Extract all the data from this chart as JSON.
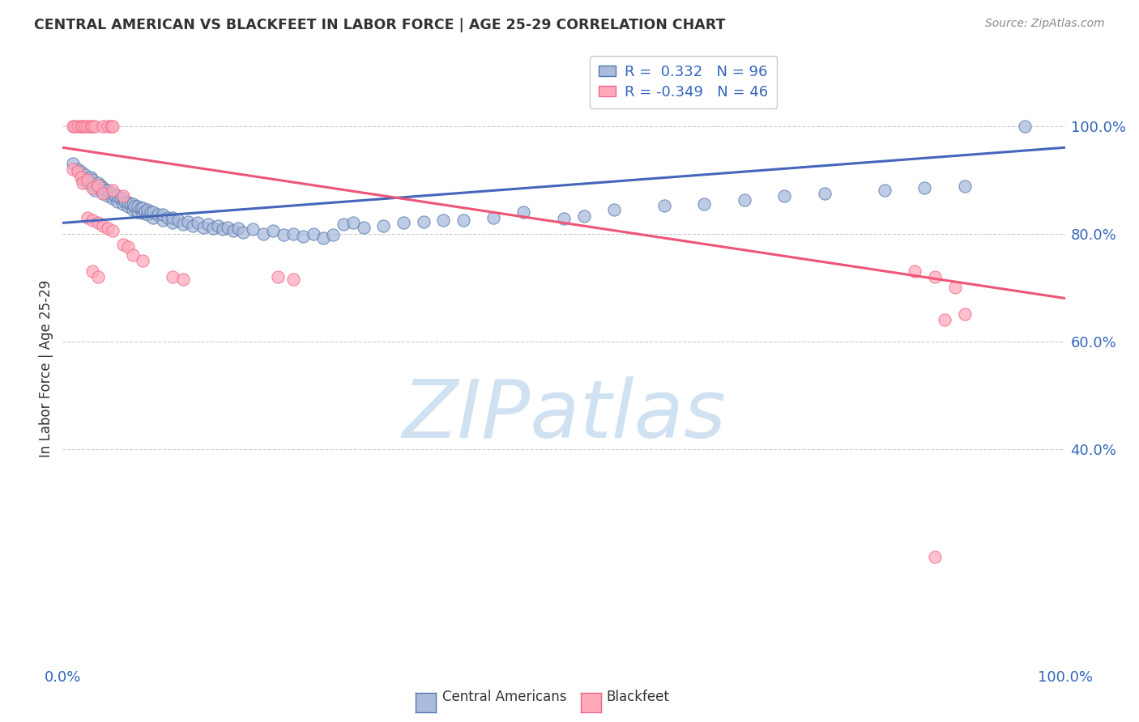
{
  "title": "CENTRAL AMERICAN VS BLACKFEET IN LABOR FORCE | AGE 25-29 CORRELATION CHART",
  "source": "Source: ZipAtlas.com",
  "ylabel": "In Labor Force | Age 25-29",
  "blue_color": "#AABBDD",
  "pink_color": "#FFAABB",
  "blue_edge_color": "#5577AA",
  "pink_edge_color": "#EE6688",
  "blue_line_color": "#4466BB",
  "pink_line_color": "#EE5577",
  "legend_blue_label": "R =  0.332   N = 96",
  "legend_pink_label": "R = -0.349   N = 46",
  "watermark_text": "ZIPatlas",
  "watermark_color": "#C8DDEF",
  "blue_points": [
    [
      0.01,
      0.93
    ],
    [
      0.015,
      0.92
    ],
    [
      0.018,
      0.915
    ],
    [
      0.02,
      0.9
    ],
    [
      0.022,
      0.91
    ],
    [
      0.025,
      0.895
    ],
    [
      0.028,
      0.905
    ],
    [
      0.03,
      0.89
    ],
    [
      0.03,
      0.9
    ],
    [
      0.032,
      0.88
    ],
    [
      0.035,
      0.895
    ],
    [
      0.035,
      0.885
    ],
    [
      0.038,
      0.89
    ],
    [
      0.04,
      0.875
    ],
    [
      0.04,
      0.885
    ],
    [
      0.042,
      0.88
    ],
    [
      0.045,
      0.87
    ],
    [
      0.045,
      0.88
    ],
    [
      0.048,
      0.875
    ],
    [
      0.05,
      0.865
    ],
    [
      0.05,
      0.875
    ],
    [
      0.052,
      0.87
    ],
    [
      0.055,
      0.86
    ],
    [
      0.055,
      0.87
    ],
    [
      0.058,
      0.865
    ],
    [
      0.06,
      0.855
    ],
    [
      0.06,
      0.865
    ],
    [
      0.062,
      0.86
    ],
    [
      0.065,
      0.85
    ],
    [
      0.065,
      0.858
    ],
    [
      0.068,
      0.855
    ],
    [
      0.07,
      0.845
    ],
    [
      0.07,
      0.855
    ],
    [
      0.072,
      0.85
    ],
    [
      0.075,
      0.84
    ],
    [
      0.075,
      0.85
    ],
    [
      0.078,
      0.848
    ],
    [
      0.08,
      0.838
    ],
    [
      0.08,
      0.848
    ],
    [
      0.082,
      0.842
    ],
    [
      0.085,
      0.835
    ],
    [
      0.085,
      0.845
    ],
    [
      0.088,
      0.84
    ],
    [
      0.09,
      0.83
    ],
    [
      0.09,
      0.84
    ],
    [
      0.095,
      0.835
    ],
    [
      0.1,
      0.825
    ],
    [
      0.1,
      0.835
    ],
    [
      0.105,
      0.83
    ],
    [
      0.11,
      0.82
    ],
    [
      0.11,
      0.83
    ],
    [
      0.115,
      0.825
    ],
    [
      0.12,
      0.818
    ],
    [
      0.125,
      0.822
    ],
    [
      0.13,
      0.815
    ],
    [
      0.135,
      0.82
    ],
    [
      0.14,
      0.812
    ],
    [
      0.145,
      0.818
    ],
    [
      0.15,
      0.81
    ],
    [
      0.155,
      0.815
    ],
    [
      0.16,
      0.808
    ],
    [
      0.165,
      0.812
    ],
    [
      0.17,
      0.805
    ],
    [
      0.175,
      0.81
    ],
    [
      0.18,
      0.802
    ],
    [
      0.19,
      0.808
    ],
    [
      0.2,
      0.8
    ],
    [
      0.21,
      0.805
    ],
    [
      0.22,
      0.798
    ],
    [
      0.23,
      0.8
    ],
    [
      0.24,
      0.795
    ],
    [
      0.25,
      0.8
    ],
    [
      0.26,
      0.792
    ],
    [
      0.27,
      0.798
    ],
    [
      0.28,
      0.818
    ],
    [
      0.29,
      0.82
    ],
    [
      0.3,
      0.812
    ],
    [
      0.32,
      0.815
    ],
    [
      0.34,
      0.82
    ],
    [
      0.36,
      0.822
    ],
    [
      0.38,
      0.825
    ],
    [
      0.4,
      0.825
    ],
    [
      0.43,
      0.83
    ],
    [
      0.46,
      0.84
    ],
    [
      0.5,
      0.828
    ],
    [
      0.52,
      0.832
    ],
    [
      0.55,
      0.845
    ],
    [
      0.6,
      0.852
    ],
    [
      0.64,
      0.855
    ],
    [
      0.68,
      0.862
    ],
    [
      0.72,
      0.87
    ],
    [
      0.76,
      0.875
    ],
    [
      0.82,
      0.88
    ],
    [
      0.86,
      0.885
    ],
    [
      0.9,
      0.888
    ],
    [
      0.96,
      1.0
    ]
  ],
  "pink_points": [
    [
      0.01,
      1.0
    ],
    [
      0.012,
      1.0
    ],
    [
      0.015,
      1.0
    ],
    [
      0.018,
      1.0
    ],
    [
      0.02,
      1.0
    ],
    [
      0.022,
      1.0
    ],
    [
      0.025,
      1.0
    ],
    [
      0.028,
      1.0
    ],
    [
      0.03,
      1.0
    ],
    [
      0.032,
      1.0
    ],
    [
      0.04,
      1.0
    ],
    [
      0.045,
      1.0
    ],
    [
      0.048,
      1.0
    ],
    [
      0.05,
      1.0
    ],
    [
      0.01,
      0.92
    ],
    [
      0.015,
      0.915
    ],
    [
      0.018,
      0.905
    ],
    [
      0.02,
      0.895
    ],
    [
      0.025,
      0.9
    ],
    [
      0.03,
      0.885
    ],
    [
      0.035,
      0.89
    ],
    [
      0.04,
      0.875
    ],
    [
      0.05,
      0.88
    ],
    [
      0.06,
      0.87
    ],
    [
      0.025,
      0.83
    ],
    [
      0.03,
      0.825
    ],
    [
      0.035,
      0.82
    ],
    [
      0.04,
      0.815
    ],
    [
      0.045,
      0.81
    ],
    [
      0.05,
      0.805
    ],
    [
      0.06,
      0.78
    ],
    [
      0.065,
      0.775
    ],
    [
      0.07,
      0.76
    ],
    [
      0.08,
      0.75
    ],
    [
      0.03,
      0.73
    ],
    [
      0.035,
      0.72
    ],
    [
      0.11,
      0.72
    ],
    [
      0.12,
      0.715
    ],
    [
      0.215,
      0.72
    ],
    [
      0.23,
      0.715
    ],
    [
      0.85,
      0.73
    ],
    [
      0.87,
      0.72
    ],
    [
      0.89,
      0.7
    ],
    [
      0.9,
      0.65
    ],
    [
      0.88,
      0.64
    ],
    [
      0.87,
      0.2
    ]
  ],
  "blue_trend_x": [
    0.0,
    1.0
  ],
  "blue_trend_y": [
    0.82,
    0.96
  ],
  "pink_trend_x": [
    0.0,
    1.0
  ],
  "pink_trend_y": [
    0.96,
    0.68
  ],
  "xlim": [
    0.0,
    1.0
  ],
  "ylim": [
    0.0,
    1.1
  ],
  "yticks": [
    0.4,
    0.6,
    0.8,
    1.0
  ],
  "yticklabels": [
    "40.0%",
    "60.0%",
    "80.0%",
    "100.0%"
  ],
  "xtick_left": "0.0%",
  "xtick_right": "100.0%",
  "background_color": "#FFFFFF",
  "grid_color": "#CCCCCC"
}
